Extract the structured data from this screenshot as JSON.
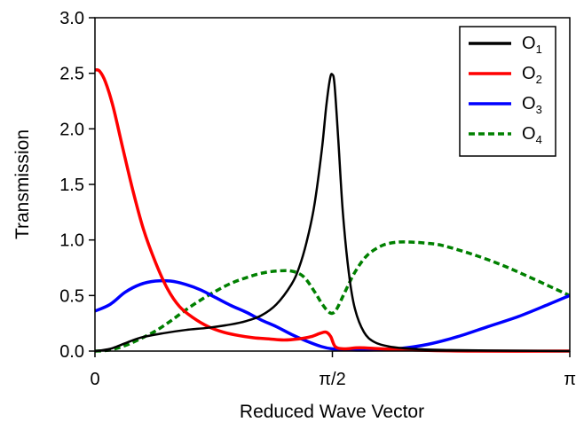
{
  "chart_data": {
    "type": "line",
    "xlabel": "Reduced Wave Vector",
    "ylabel": "Transmission",
    "xlim": [
      0,
      3.14159
    ],
    "ylim": [
      0,
      3.0
    ],
    "x_ticks": [
      {
        "value": 0,
        "label": "0"
      },
      {
        "value": 1.5708,
        "label": "π/2"
      },
      {
        "value": 3.14159,
        "label": "π"
      }
    ],
    "y_ticks": [
      {
        "value": 0.0,
        "label": "0.0"
      },
      {
        "value": 0.5,
        "label": "0.5"
      },
      {
        "value": 1.0,
        "label": "1.0"
      },
      {
        "value": 1.5,
        "label": "1.5"
      },
      {
        "value": 2.0,
        "label": "2.0"
      },
      {
        "value": 2.5,
        "label": "2.5"
      },
      {
        "value": 3.0,
        "label": "3.0"
      }
    ],
    "grid": false,
    "legend_position": "top-right",
    "series": [
      {
        "name": "O",
        "subscript": "1",
        "color": "#000000",
        "dash": "solid",
        "x": [
          0.0,
          0.1,
          0.2,
          0.3,
          0.45,
          0.6,
          0.75,
          0.9,
          1.0,
          1.1,
          1.2,
          1.3,
          1.35,
          1.4,
          1.45,
          1.5,
          1.53,
          1.555,
          1.57,
          1.585,
          1.61,
          1.64,
          1.68,
          1.72,
          1.78,
          1.85,
          1.95,
          2.1,
          2.3,
          2.6,
          3.14
        ],
        "y": [
          0.0,
          0.02,
          0.07,
          0.12,
          0.16,
          0.19,
          0.21,
          0.24,
          0.27,
          0.32,
          0.42,
          0.6,
          0.75,
          0.98,
          1.3,
          1.8,
          2.2,
          2.45,
          2.49,
          2.4,
          1.9,
          1.25,
          0.7,
          0.38,
          0.17,
          0.08,
          0.04,
          0.02,
          0.01,
          0.005,
          0.0
        ]
      },
      {
        "name": "O",
        "subscript": "2",
        "color": "#ff0000",
        "dash": "solid",
        "x": [
          0.0,
          0.03,
          0.07,
          0.12,
          0.18,
          0.25,
          0.32,
          0.4,
          0.48,
          0.56,
          0.65,
          0.75,
          0.85,
          0.95,
          1.05,
          1.15,
          1.25,
          1.35,
          1.43,
          1.49,
          1.53,
          1.56,
          1.59,
          1.65,
          1.75,
          1.9,
          2.1,
          2.5,
          3.14
        ],
        "y": [
          2.53,
          2.52,
          2.42,
          2.2,
          1.85,
          1.45,
          1.1,
          0.8,
          0.56,
          0.4,
          0.3,
          0.22,
          0.17,
          0.14,
          0.12,
          0.11,
          0.1,
          0.11,
          0.13,
          0.16,
          0.17,
          0.13,
          0.04,
          0.02,
          0.03,
          0.02,
          0.01,
          0.0,
          0.0
        ]
      },
      {
        "name": "O",
        "subscript": "3",
        "color": "#0000ff",
        "dash": "solid",
        "x": [
          0.0,
          0.1,
          0.2,
          0.3,
          0.4,
          0.5,
          0.6,
          0.7,
          0.8,
          0.9,
          1.0,
          1.1,
          1.2,
          1.3,
          1.4,
          1.5,
          1.57,
          1.7,
          1.85,
          2.0,
          2.2,
          2.4,
          2.6,
          2.8,
          3.0,
          3.14
        ],
        "y": [
          0.36,
          0.42,
          0.53,
          0.6,
          0.63,
          0.63,
          0.6,
          0.55,
          0.48,
          0.41,
          0.35,
          0.28,
          0.22,
          0.15,
          0.09,
          0.04,
          0.02,
          0.01,
          0.01,
          0.02,
          0.06,
          0.13,
          0.22,
          0.31,
          0.42,
          0.5
        ]
      },
      {
        "name": "O",
        "subscript": "4",
        "color": "#008000",
        "dash": "dotted",
        "x": [
          0.0,
          0.1,
          0.2,
          0.3,
          0.4,
          0.5,
          0.6,
          0.7,
          0.8,
          0.9,
          1.0,
          1.1,
          1.2,
          1.3,
          1.38,
          1.45,
          1.5,
          1.54,
          1.57,
          1.6,
          1.65,
          1.72,
          1.8,
          1.9,
          2.0,
          2.1,
          2.2,
          2.3,
          2.5,
          2.7,
          2.9,
          3.14
        ],
        "y": [
          0.0,
          0.01,
          0.05,
          0.11,
          0.18,
          0.27,
          0.37,
          0.46,
          0.54,
          0.61,
          0.66,
          0.7,
          0.72,
          0.72,
          0.67,
          0.54,
          0.43,
          0.36,
          0.34,
          0.38,
          0.52,
          0.71,
          0.86,
          0.95,
          0.98,
          0.98,
          0.97,
          0.95,
          0.87,
          0.77,
          0.65,
          0.5
        ]
      }
    ]
  }
}
